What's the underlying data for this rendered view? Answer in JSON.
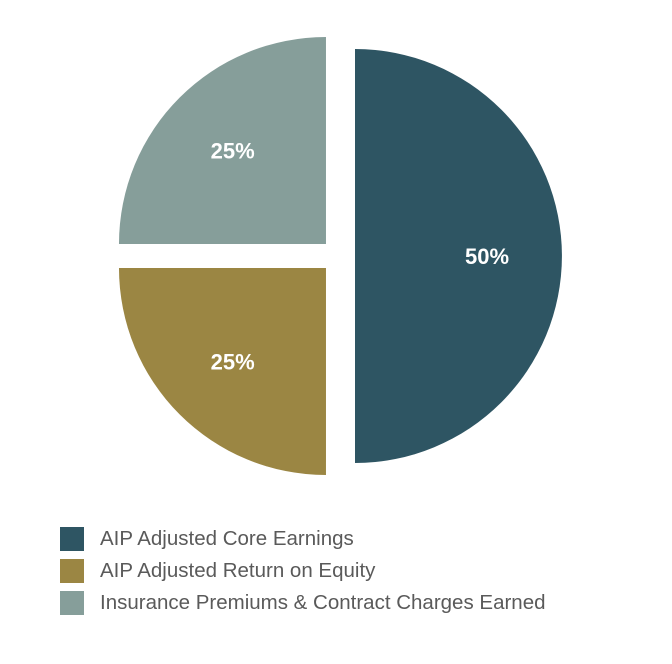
{
  "chart_data": {
    "type": "pie",
    "title": "",
    "slices": [
      {
        "name": "AIP Adjusted Core Earnings",
        "value": 50,
        "label": "50%",
        "color": "#2e5563"
      },
      {
        "name": "AIP Adjusted Return on Equity",
        "value": 25,
        "label": "25%",
        "color": "#9b8643"
      },
      {
        "name": "Insurance Premiums & Contract Charges Earned",
        "value": 25,
        "label": "25%",
        "color": "#869e9a"
      }
    ],
    "legend_position": "bottom-left",
    "exploded": true
  },
  "legend": {
    "items": [
      {
        "label": "AIP Adjusted Core Earnings",
        "color": "#2e5563"
      },
      {
        "label": "AIP Adjusted Return on Equity",
        "color": "#9b8643"
      },
      {
        "label": "Insurance Premiums & Contract Charges Earned",
        "color": "#869e9a"
      }
    ]
  }
}
